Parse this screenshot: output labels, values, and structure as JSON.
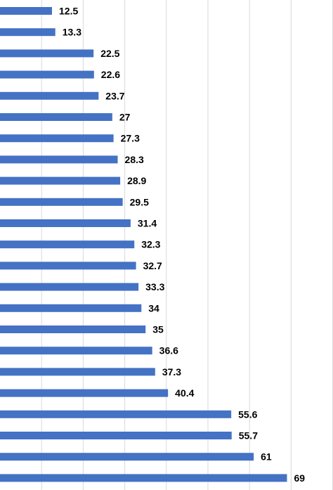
{
  "chart_data": {
    "type": "bar",
    "orientation": "horizontal",
    "values": [
      12.5,
      13.3,
      22.5,
      22.6,
      23.7,
      27,
      27.3,
      28.3,
      28.9,
      29.5,
      31.4,
      32.3,
      32.7,
      33.3,
      34,
      35,
      36.6,
      37.3,
      40.4,
      55.6,
      55.7,
      61,
      69
    ],
    "data_labels": [
      "12.5",
      "13.3",
      "22.5",
      "22.6",
      "23.7",
      "27",
      "27.3",
      "28.3",
      "28.9",
      "29.5",
      "31.4",
      "32.3",
      "32.7",
      "33.3",
      "34",
      "35",
      "36.6",
      "37.3",
      "40.4",
      "55.6",
      "55.7",
      "61",
      "69"
    ],
    "xlim": [
      0,
      80
    ],
    "grid": true,
    "bar_color": "#4472c4",
    "grid_color": "#d9d9d9"
  }
}
